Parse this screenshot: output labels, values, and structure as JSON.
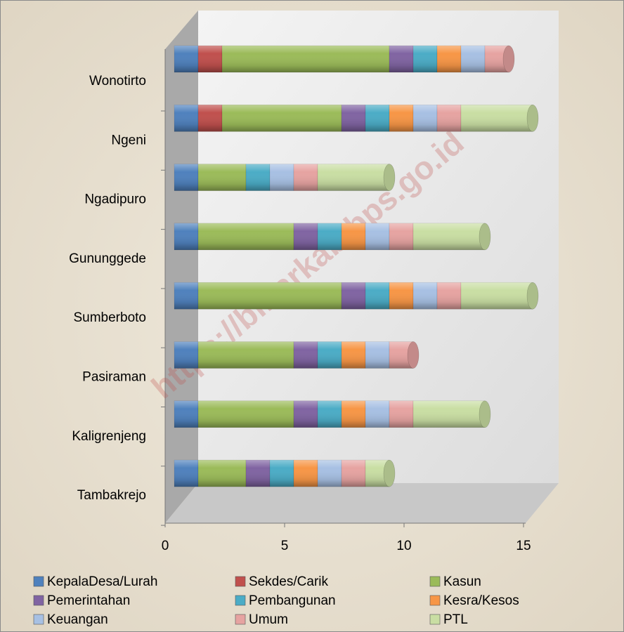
{
  "chart_data": {
    "type": "bar3d_stacked_horizontal",
    "watermark": "https://blitarkab.bps.go.id",
    "categories": [
      "Tambakrejo",
      "Kaligrenjeng",
      "Pasiraman",
      "Sumberboto",
      "Gununggede",
      "Ngadipuro",
      "Ngeni",
      "Wonotirto"
    ],
    "series": [
      {
        "name": "KepalaDesa/Lurah",
        "color": "#4f81bd",
        "values": [
          1,
          1,
          1,
          1,
          1,
          1,
          1,
          1
        ]
      },
      {
        "name": "Sekdes/Carik",
        "color": "#c0504d",
        "values": [
          0,
          0,
          0,
          0,
          0,
          0,
          1,
          1
        ]
      },
      {
        "name": "Kasun",
        "color": "#9bbb59",
        "values": [
          2,
          4,
          4,
          6,
          4,
          2,
          5,
          7
        ]
      },
      {
        "name": "Pemerintahan",
        "color": "#8064a2",
        "values": [
          1,
          1,
          1,
          1,
          1,
          0,
          1,
          1
        ]
      },
      {
        "name": "Pembangunan",
        "color": "#4bacc6",
        "values": [
          1,
          1,
          1,
          1,
          1,
          1,
          1,
          1
        ]
      },
      {
        "name": "Kesra/Kesos",
        "color": "#f79646",
        "values": [
          1,
          1,
          1,
          1,
          1,
          0,
          1,
          1
        ]
      },
      {
        "name": "Keuangan",
        "color": "#a7c0e3",
        "values": [
          1,
          1,
          1,
          1,
          1,
          1,
          1,
          1
        ]
      },
      {
        "name": "Umum",
        "color": "#e6a3a1",
        "values": [
          1,
          1,
          1,
          1,
          1,
          1,
          1,
          1
        ]
      },
      {
        "name": "PTL",
        "color": "#c9dea3",
        "values": [
          1,
          3,
          0,
          3,
          3,
          3,
          3,
          0
        ]
      }
    ],
    "xlim": [
      0,
      15
    ],
    "xticks": [
      0,
      5,
      10,
      15
    ]
  }
}
